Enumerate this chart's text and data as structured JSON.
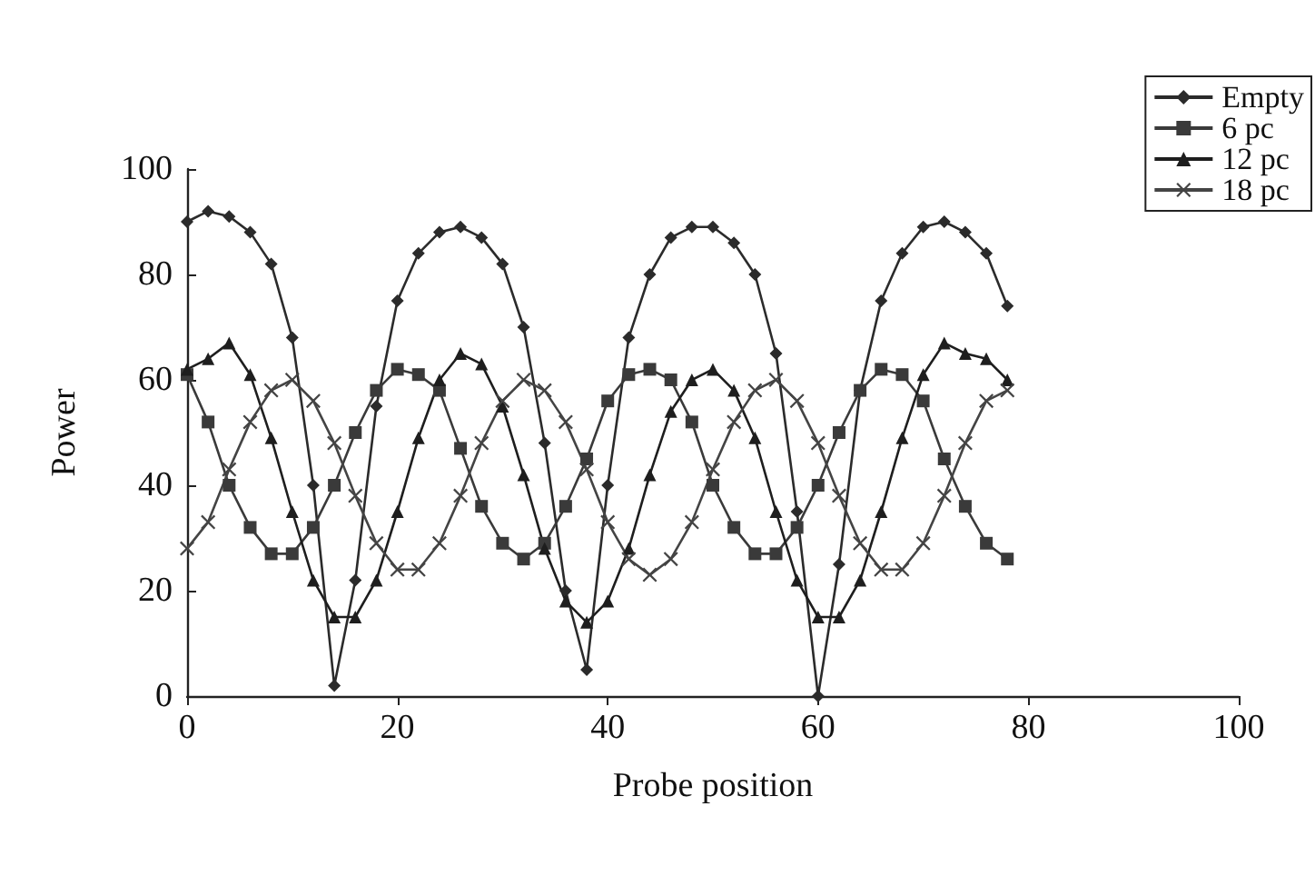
{
  "chart_data": {
    "type": "line",
    "xlabel": "Probe position",
    "ylabel": "Power",
    "x": [
      0,
      2,
      4,
      6,
      8,
      10,
      12,
      14,
      16,
      18,
      20,
      22,
      24,
      26,
      28,
      30,
      32,
      34,
      36,
      38,
      40,
      42,
      44,
      46,
      48,
      50,
      52,
      54,
      56,
      58,
      60,
      62,
      64,
      66,
      68,
      70,
      72,
      74,
      76,
      78
    ],
    "series": [
      {
        "name": "Empty",
        "color": "#2b2b2b",
        "marker": "diamond",
        "values": [
          90,
          92,
          91,
          88,
          82,
          68,
          40,
          2,
          22,
          55,
          75,
          84,
          88,
          89,
          87,
          82,
          70,
          48,
          20,
          5,
          40,
          68,
          80,
          87,
          89,
          89,
          86,
          80,
          65,
          35,
          0,
          25,
          58,
          75,
          84,
          89,
          90,
          88,
          84,
          74
        ]
      },
      {
        "name": "6 pc",
        "color": "#3a3a3a",
        "marker": "square",
        "values": [
          61,
          52,
          40,
          32,
          27,
          27,
          32,
          40,
          50,
          58,
          62,
          61,
          58,
          47,
          36,
          29,
          26,
          29,
          36,
          45,
          56,
          61,
          62,
          60,
          52,
          40,
          32,
          27,
          27,
          32,
          40,
          50,
          58,
          62,
          61,
          56,
          45,
          36,
          29,
          26
        ]
      },
      {
        "name": "12 pc",
        "color": "#1e1e1e",
        "marker": "triangle",
        "values": [
          62,
          64,
          67,
          61,
          49,
          35,
          22,
          15,
          15,
          22,
          35,
          49,
          60,
          65,
          63,
          55,
          42,
          28,
          18,
          14,
          18,
          28,
          42,
          54,
          60,
          62,
          58,
          49,
          35,
          22,
          15,
          15,
          22,
          35,
          49,
          61,
          67,
          65,
          64,
          60
        ]
      },
      {
        "name": "18 pc",
        "color": "#444444",
        "marker": "cross",
        "values": [
          28,
          33,
          43,
          52,
          58,
          60,
          56,
          48,
          38,
          29,
          24,
          24,
          29,
          38,
          48,
          56,
          60,
          58,
          52,
          43,
          33,
          26,
          23,
          26,
          33,
          43,
          52,
          58,
          60,
          56,
          48,
          38,
          29,
          24,
          24,
          29,
          38,
          48,
          56,
          58
        ]
      }
    ],
    "xlim": [
      0,
      100
    ],
    "xticks": [
      0,
      20,
      40,
      60,
      80,
      100
    ],
    "ylim": [
      0,
      100
    ],
    "yticks": [
      0,
      20,
      40,
      60,
      80,
      100
    ],
    "grid": false,
    "legend": "top right",
    "line_style": "solid"
  }
}
